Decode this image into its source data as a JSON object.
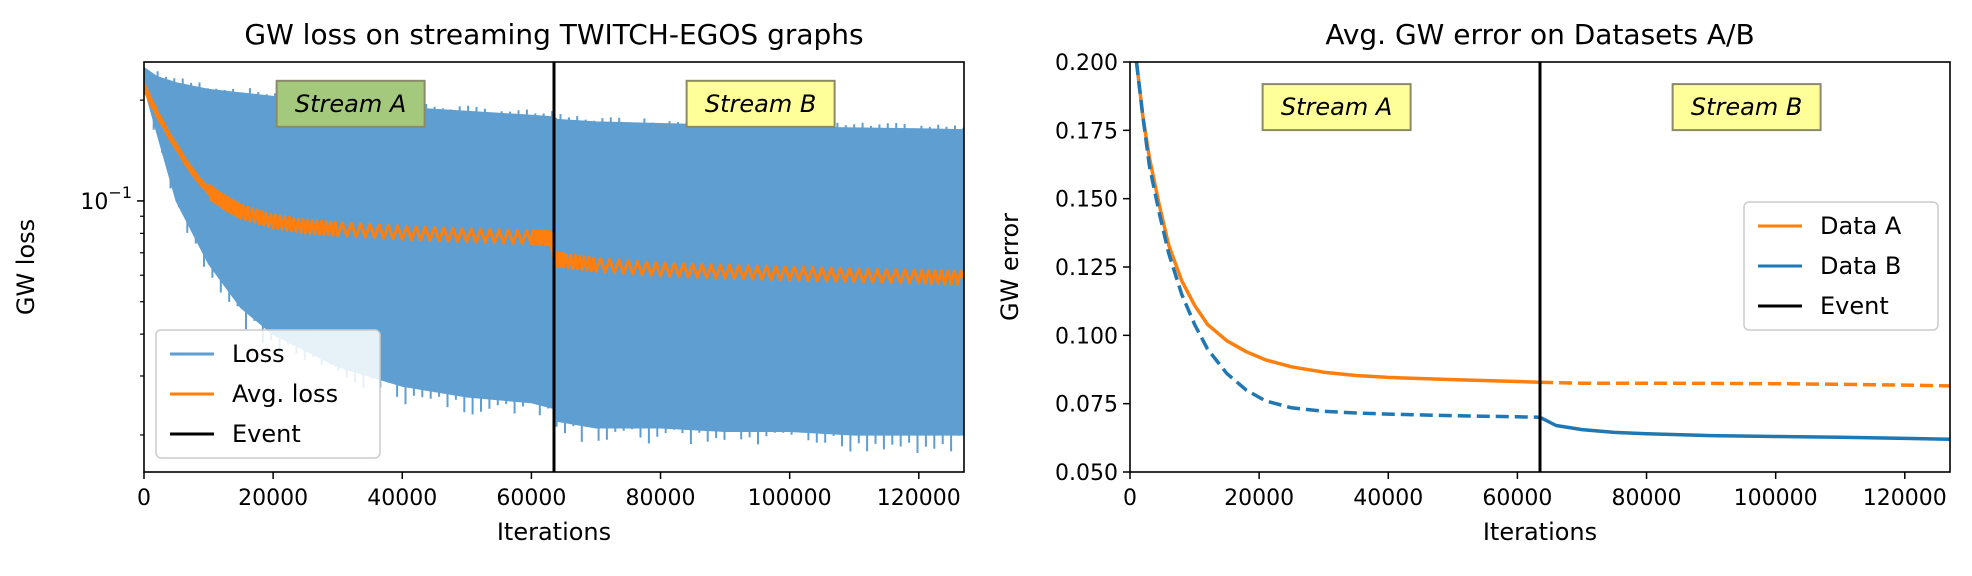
{
  "chart_data": [
    {
      "type": "line",
      "title": "GW loss on streaming TWITCH-EGOS graphs",
      "xlabel": "Iterations",
      "ylabel": "GW loss",
      "yscale": "log",
      "xlim": [
        0,
        127000
      ],
      "ylim": [
        0.0155,
        0.26
      ],
      "xticks": [
        0,
        20000,
        40000,
        60000,
        80000,
        100000,
        120000
      ],
      "xtick_labels": [
        "0",
        "20000",
        "40000",
        "60000",
        "80000",
        "100000",
        "120000"
      ],
      "yticks": [
        0.1
      ],
      "ytick_labels": [
        "10^-1"
      ],
      "event_x": 63500,
      "annotations": [
        {
          "text": "Stream A",
          "x": 32000,
          "y": 0.195,
          "facecolor": "#a4c97c"
        },
        {
          "text": "Stream B",
          "x": 95500,
          "y": 0.195,
          "facecolor": "#ffff99"
        }
      ],
      "loss_band": {
        "name": "Loss",
        "color": "#5f9ed1",
        "x": [
          0,
          2000,
          5000,
          10000,
          15000,
          20000,
          30000,
          40000,
          50000,
          60000,
          63500,
          64000,
          70000,
          80000,
          90000,
          100000,
          110000,
          120000,
          127000
        ],
        "upper": [
          0.25,
          0.235,
          0.225,
          0.215,
          0.21,
          0.205,
          0.198,
          0.19,
          0.185,
          0.18,
          0.178,
          0.175,
          0.172,
          0.17,
          0.168,
          0.166,
          0.165,
          0.164,
          0.163
        ],
        "lower": [
          0.22,
          0.16,
          0.1,
          0.065,
          0.048,
          0.04,
          0.032,
          0.028,
          0.026,
          0.025,
          0.024,
          0.022,
          0.021,
          0.021,
          0.0205,
          0.0205,
          0.02,
          0.02,
          0.02
        ]
      },
      "series": [
        {
          "name": "Avg. loss",
          "color": "#ff7f0e",
          "x": [
            0,
            1000,
            2500,
            5000,
            7500,
            10000,
            12500,
            15000,
            20000,
            25000,
            30000,
            40000,
            50000,
            60000,
            63000,
            63700,
            65000,
            70000,
            80000,
            90000,
            100000,
            110000,
            120000,
            127000
          ],
          "y": [
            0.22,
            0.2,
            0.175,
            0.145,
            0.122,
            0.107,
            0.099,
            0.093,
            0.087,
            0.084,
            0.0825,
            0.0805,
            0.079,
            0.078,
            0.0775,
            0.067,
            0.0665,
            0.0645,
            0.0625,
            0.0615,
            0.0608,
            0.06,
            0.0595,
            0.059
          ]
        }
      ],
      "legend": {
        "position": "lower-left",
        "entries": [
          {
            "label": "Loss",
            "color": "#5f9ed1"
          },
          {
            "label": "Avg. loss",
            "color": "#ff7f0e"
          },
          {
            "label": "Event",
            "color": "#000000"
          }
        ]
      }
    },
    {
      "type": "line",
      "title": "Avg. GW error on Datasets A/B",
      "xlabel": "Iterations",
      "ylabel": "GW error",
      "xlim": [
        0,
        127000
      ],
      "ylim": [
        0.05,
        0.2
      ],
      "xticks": [
        0,
        20000,
        40000,
        60000,
        80000,
        100000,
        120000
      ],
      "xtick_labels": [
        "0",
        "20000",
        "40000",
        "60000",
        "80000",
        "100000",
        "120000"
      ],
      "yticks": [
        0.05,
        0.075,
        0.1,
        0.125,
        0.15,
        0.175,
        0.2
      ],
      "ytick_labels": [
        "0.050",
        "0.075",
        "0.100",
        "0.125",
        "0.150",
        "0.175",
        "0.200"
      ],
      "event_x": 63500,
      "annotations": [
        {
          "text": "Stream A",
          "x": 32000,
          "y": 0.1835,
          "facecolor": "#ffff99"
        },
        {
          "text": "Stream B",
          "x": 95500,
          "y": 0.1835,
          "facecolor": "#ffff99"
        }
      ],
      "series": [
        {
          "name": "Data A",
          "color": "#ff7f0e",
          "x": [
            1000,
            2000,
            3000,
            4500,
            6000,
            8000,
            10000,
            12000,
            15000,
            18000,
            21000,
            25000,
            30000,
            35000,
            40000,
            50000,
            60000,
            63500
          ],
          "y": [
            0.2,
            0.18,
            0.165,
            0.148,
            0.133,
            0.12,
            0.111,
            0.104,
            0.098,
            0.094,
            0.091,
            0.0885,
            0.0865,
            0.0853,
            0.0846,
            0.0838,
            0.0831,
            0.0828
          ],
          "dashed": false
        },
        {
          "name": "Data A (after event)",
          "color": "#ff7f0e",
          "x": [
            63500,
            70000,
            80000,
            90000,
            100000,
            110000,
            120000,
            127000
          ],
          "y": [
            0.0828,
            0.0825,
            0.0825,
            0.0824,
            0.0823,
            0.0821,
            0.0818,
            0.0815
          ],
          "dashed": true
        },
        {
          "name": "Data B",
          "color": "#1f77b4",
          "x": [
            1000,
            2000,
            3000,
            4500,
            6000,
            8000,
            10000,
            12000,
            15000,
            18000,
            21000,
            25000,
            30000,
            35000,
            40000,
            50000,
            60000,
            63500
          ],
          "y": [
            0.2,
            0.18,
            0.162,
            0.145,
            0.13,
            0.115,
            0.104,
            0.095,
            0.086,
            0.08,
            0.076,
            0.0735,
            0.0722,
            0.0716,
            0.0712,
            0.0706,
            0.0702,
            0.07
          ],
          "dashed": true
        },
        {
          "name": "Data B (after event)",
          "color": "#1f77b4",
          "x": [
            63500,
            66000,
            70000,
            75000,
            80000,
            90000,
            100000,
            110000,
            120000,
            127000
          ],
          "y": [
            0.07,
            0.067,
            0.0655,
            0.0645,
            0.064,
            0.0633,
            0.063,
            0.0627,
            0.0623,
            0.062
          ],
          "dashed": false
        }
      ],
      "legend": {
        "position": "center-right",
        "entries": [
          {
            "label": "Data A",
            "color": "#ff7f0e"
          },
          {
            "label": "Data B",
            "color": "#1f77b4"
          },
          {
            "label": "Event",
            "color": "#000000"
          }
        ]
      }
    }
  ]
}
